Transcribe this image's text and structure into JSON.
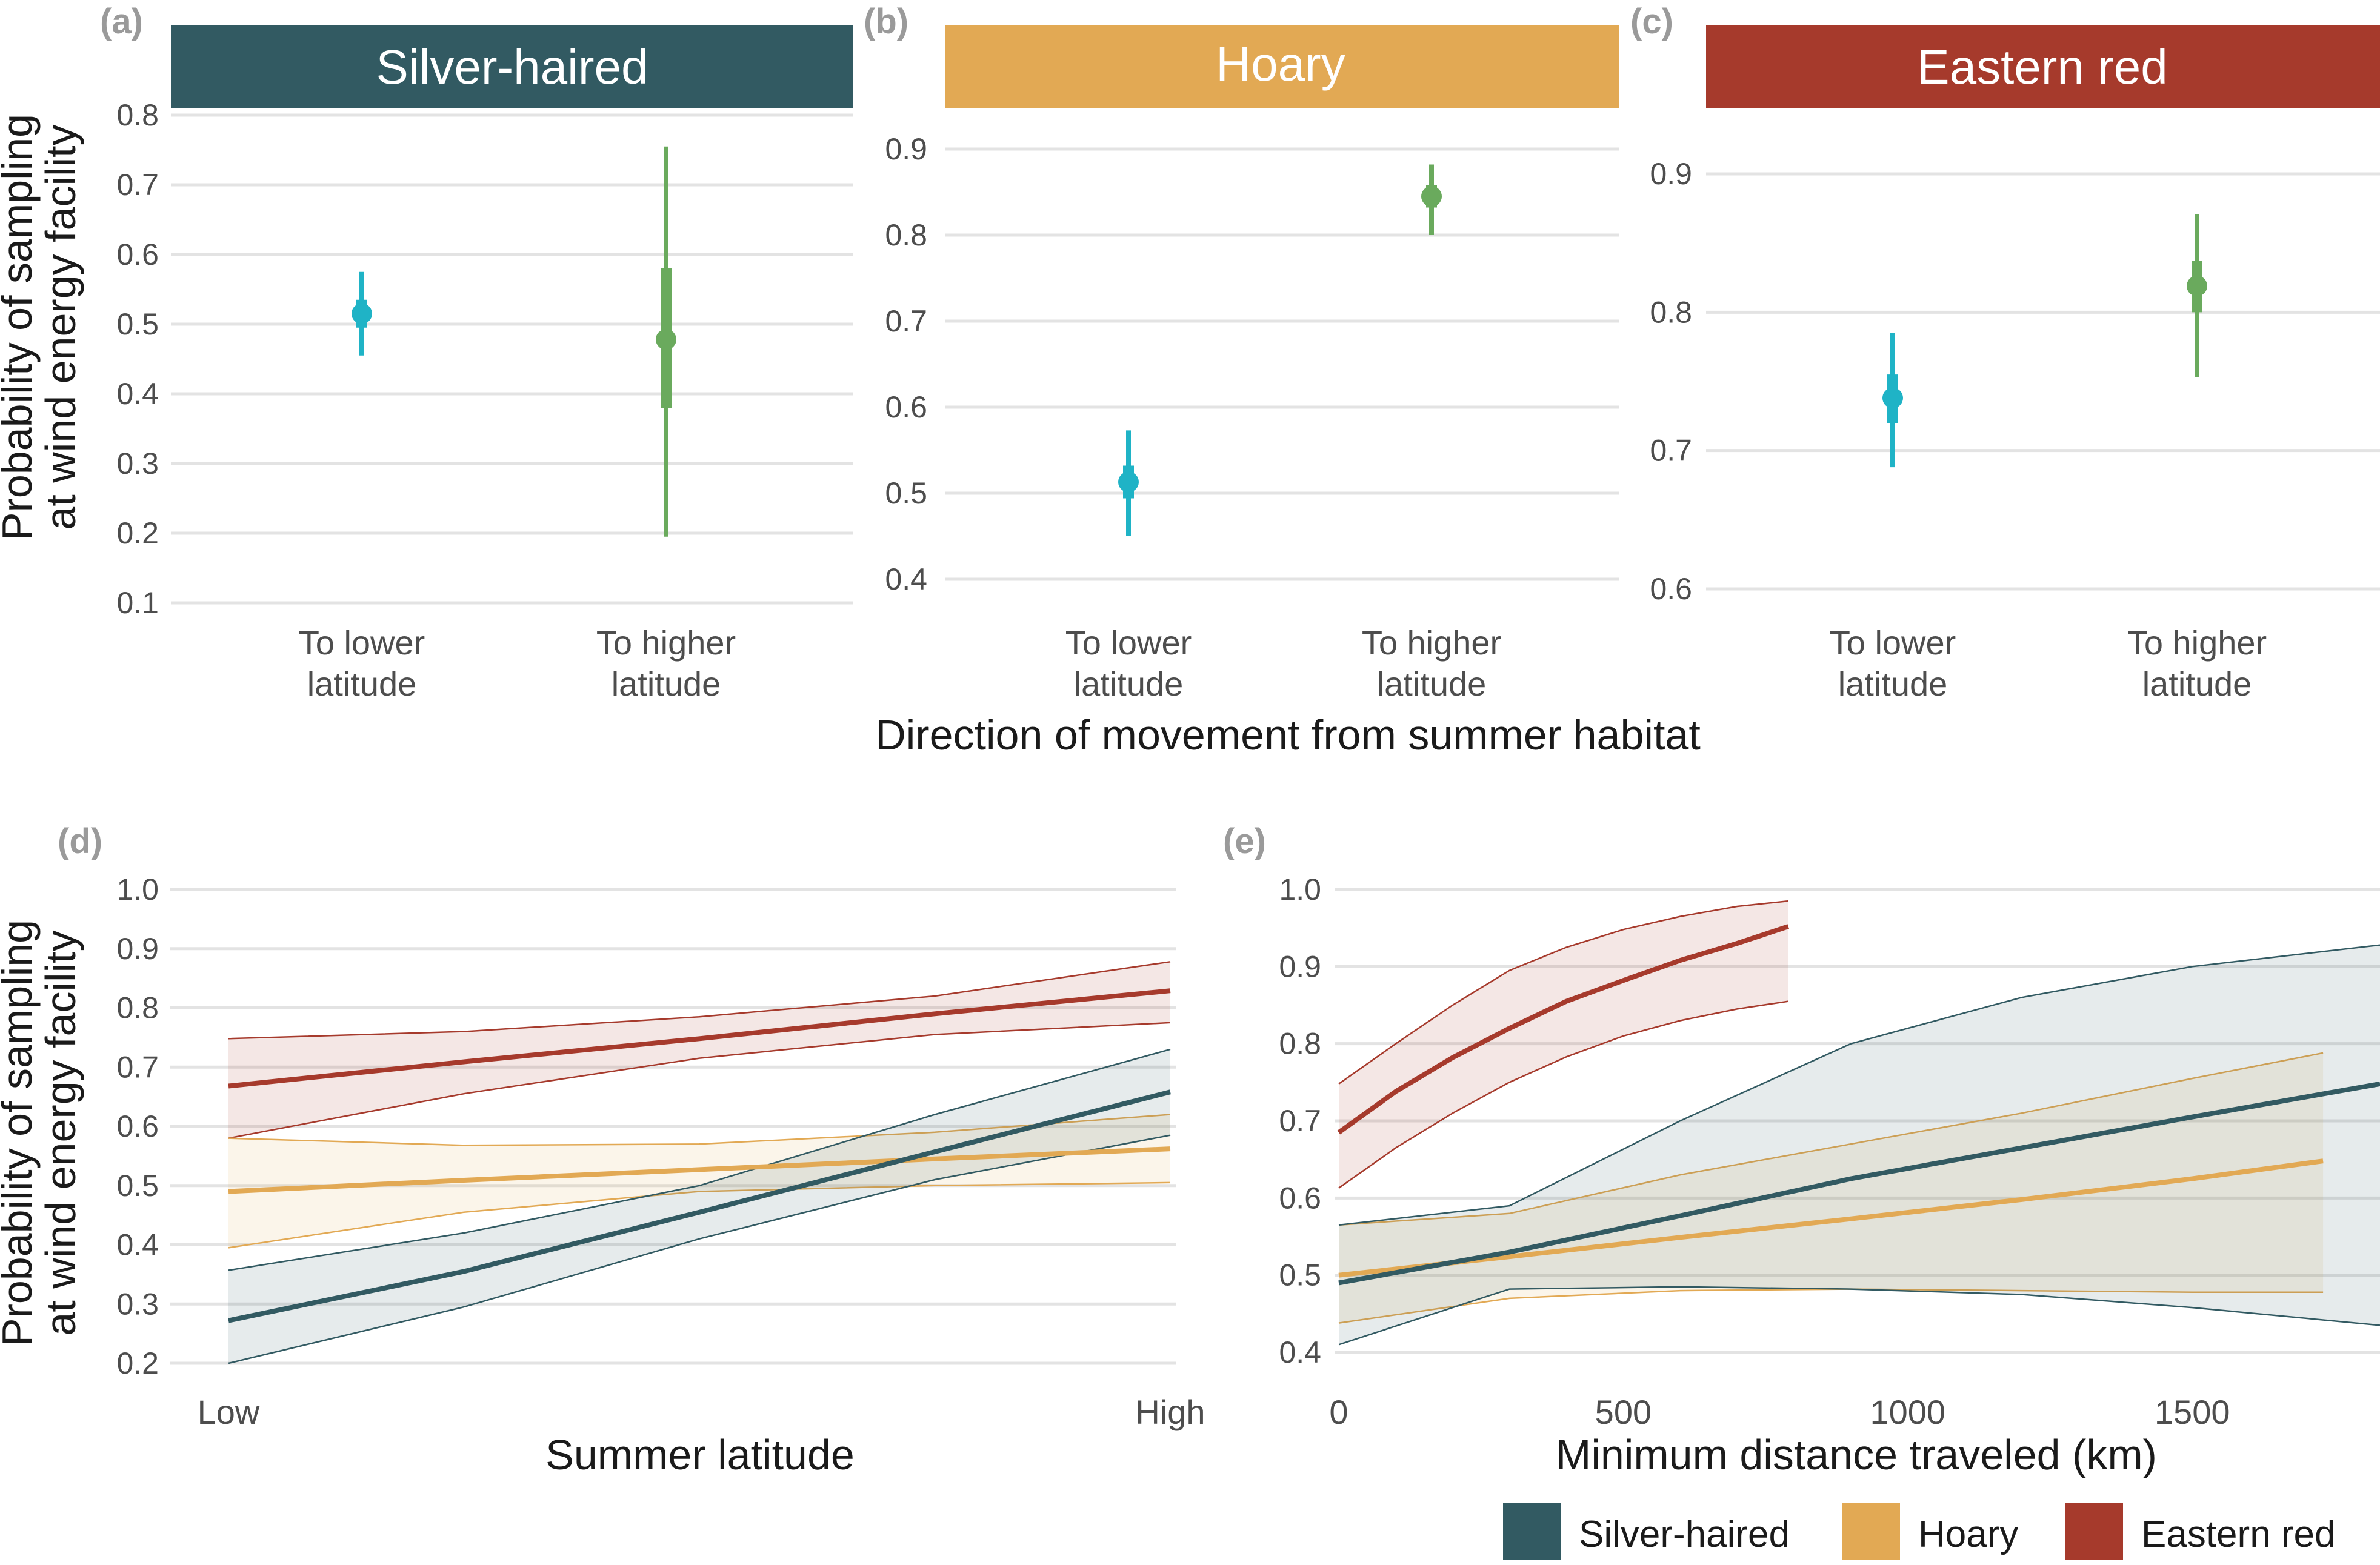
{
  "colors": {
    "silver_haired": "#325a62",
    "hoary": "#e2a954",
    "eastern_red": "#a63a2c",
    "lower_latitude": "#1fb3c6",
    "higher_latitude": "#6aaa5d",
    "panel_tag": "#9a9a9a",
    "grid": "#e3e3e3"
  },
  "top_x_title": "Direction of movement from summer habitat",
  "y_title_line1": "Probability of sampling",
  "y_title_line2": "at wind energy facility",
  "chart_data": [
    {
      "panel": "(a)",
      "type": "scatter",
      "strip_label": "Silver-haired",
      "strip_color": "#325a62",
      "categories": [
        "To lower latitude",
        "To higher latitude"
      ],
      "category_lines": [
        [
          "To lower",
          "latitude"
        ],
        [
          "To higher",
          "latitude"
        ]
      ],
      "ylim": [
        0.08,
        0.8
      ],
      "yticks": [
        "0.1",
        "0.2",
        "0.3",
        "0.4",
        "0.5",
        "0.6",
        "0.7",
        "0.8"
      ],
      "points": [
        {
          "category": "To lower latitude",
          "estimate": 0.515,
          "inner": [
            0.495,
            0.535
          ],
          "outer": [
            0.455,
            0.575
          ],
          "color": "#1fb3c6"
        },
        {
          "category": "To higher latitude",
          "estimate": 0.478,
          "inner": [
            0.38,
            0.58
          ],
          "outer": [
            0.195,
            0.755
          ],
          "color": "#6aaa5d"
        }
      ]
    },
    {
      "panel": "(b)",
      "type": "scatter",
      "strip_label": "Hoary",
      "strip_color": "#e2a954",
      "categories": [
        "To lower latitude",
        "To higher latitude"
      ],
      "category_lines": [
        [
          "To lower",
          "latitude"
        ],
        [
          "To higher",
          "latitude"
        ]
      ],
      "ylim": [
        0.38,
        0.91
      ],
      "yticks": [
        "0.4",
        "0.5",
        "0.6",
        "0.7",
        "0.8",
        "0.9"
      ],
      "points": [
        {
          "category": "To lower latitude",
          "estimate": 0.513,
          "inner": [
            0.494,
            0.532
          ],
          "outer": [
            0.45,
            0.573
          ],
          "color": "#1fb3c6"
        },
        {
          "category": "To higher latitude",
          "estimate": 0.845,
          "inner": [
            0.832,
            0.858
          ],
          "outer": [
            0.8,
            0.882
          ],
          "color": "#6aaa5d"
        }
      ]
    },
    {
      "panel": "(c)",
      "type": "scatter",
      "strip_label": "Eastern red",
      "strip_color": "#a63a2c",
      "categories": [
        "To lower latitude",
        "To higher latitude"
      ],
      "category_lines": [
        [
          "To lower",
          "latitude"
        ],
        [
          "To higher",
          "latitude"
        ]
      ],
      "ylim": [
        0.59,
        0.93
      ],
      "yticks": [
        "0.6",
        "0.7",
        "0.8",
        "0.9"
      ],
      "points": [
        {
          "category": "To lower latitude",
          "estimate": 0.738,
          "inner": [
            0.72,
            0.755
          ],
          "outer": [
            0.688,
            0.785
          ],
          "color": "#1fb3c6"
        },
        {
          "category": "To higher latitude",
          "estimate": 0.819,
          "inner": [
            0.8,
            0.837
          ],
          "outer": [
            0.753,
            0.871
          ],
          "color": "#6aaa5d"
        }
      ]
    },
    {
      "panel": "(d)",
      "type": "line",
      "xlabel": "Summer latitude",
      "x_tick_labels": [
        "Low",
        "High"
      ],
      "xlim": [
        0,
        1
      ],
      "ylim": [
        0.2,
        1.0
      ],
      "yticks": [
        "0.2",
        "0.3",
        "0.4",
        "0.5",
        "0.6",
        "0.7",
        "0.8",
        "0.9",
        "1.0"
      ],
      "x": [
        0,
        0.25,
        0.5,
        0.75,
        1
      ],
      "series": [
        {
          "name": "Eastern red",
          "key": "eastern_red",
          "mean": [
            0.668,
            0.709,
            0.748,
            0.79,
            0.829
          ],
          "lower": [
            0.58,
            0.655,
            0.715,
            0.755,
            0.775
          ],
          "upper": [
            0.748,
            0.76,
            0.785,
            0.82,
            0.878
          ]
        },
        {
          "name": "Hoary",
          "key": "hoary",
          "mean": [
            0.49,
            0.509,
            0.527,
            0.545,
            0.562
          ],
          "lower": [
            0.395,
            0.455,
            0.49,
            0.5,
            0.505
          ],
          "upper": [
            0.58,
            0.568,
            0.57,
            0.59,
            0.62
          ]
        },
        {
          "name": "Silver-haired",
          "key": "silver_haired",
          "mean": [
            0.272,
            0.355,
            0.455,
            0.557,
            0.658
          ],
          "lower": [
            0.2,
            0.295,
            0.41,
            0.51,
            0.585
          ],
          "upper": [
            0.357,
            0.42,
            0.5,
            0.62,
            0.73
          ]
        }
      ]
    },
    {
      "panel": "(e)",
      "type": "line",
      "xlabel": "Minimum distance traveled (km)",
      "x_tick_labels": [
        "0",
        "500",
        "1000",
        "1500"
      ],
      "x_tick_values": [
        0,
        500,
        1000,
        1500
      ],
      "xlim": [
        0,
        1830
      ],
      "ylim": [
        0.4,
        1.0
      ],
      "yticks": [
        "0.4",
        "0.5",
        "0.6",
        "0.7",
        "0.8",
        "0.9",
        "1.0"
      ],
      "series": [
        {
          "name": "Eastern red",
          "key": "eastern_red",
          "x": [
            0,
            100,
            200,
            300,
            400,
            500,
            600,
            700,
            790
          ],
          "mean": [
            0.685,
            0.738,
            0.782,
            0.82,
            0.855,
            0.882,
            0.908,
            0.93,
            0.952
          ],
          "lower": [
            0.613,
            0.665,
            0.71,
            0.75,
            0.783,
            0.81,
            0.83,
            0.845,
            0.855
          ],
          "upper": [
            0.748,
            0.8,
            0.85,
            0.895,
            0.925,
            0.948,
            0.965,
            0.978,
            0.985
          ]
        },
        {
          "name": "Hoary",
          "key": "hoary",
          "x": [
            0,
            300,
            600,
            900,
            1200,
            1500,
            1730
          ],
          "mean": [
            0.5,
            0.524,
            0.549,
            0.573,
            0.598,
            0.625,
            0.648
          ],
          "lower": [
            0.438,
            0.47,
            0.48,
            0.482,
            0.48,
            0.478,
            0.478
          ],
          "upper": [
            0.565,
            0.58,
            0.63,
            0.67,
            0.71,
            0.755,
            0.788
          ]
        },
        {
          "name": "Silver-haired",
          "key": "silver_haired",
          "x": [
            0,
            300,
            600,
            900,
            1200,
            1500,
            1830
          ],
          "mean": [
            0.49,
            0.53,
            0.577,
            0.625,
            0.665,
            0.705,
            0.748
          ],
          "lower": [
            0.41,
            0.482,
            0.485,
            0.482,
            0.475,
            0.458,
            0.435
          ],
          "upper": [
            0.565,
            0.59,
            0.7,
            0.8,
            0.86,
            0.9,
            0.928
          ]
        }
      ]
    }
  ],
  "legend": {
    "items": [
      {
        "label": "Silver-haired",
        "key": "silver_haired"
      },
      {
        "label": "Hoary",
        "key": "hoary"
      },
      {
        "label": "Eastern red",
        "key": "eastern_red"
      }
    ]
  }
}
